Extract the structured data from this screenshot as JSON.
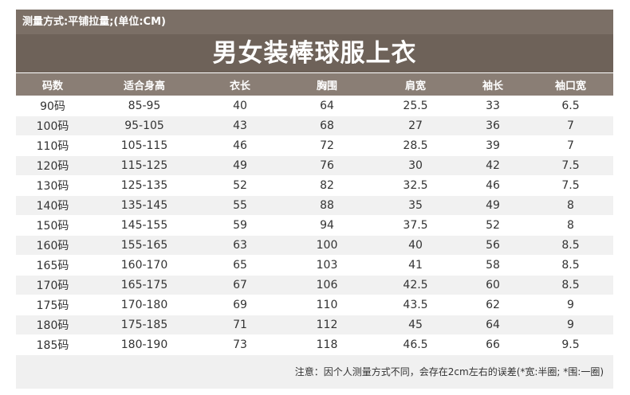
{
  "measure_note": "测量方式:平铺拉量;(单位:CM)",
  "title": "男女装棒球服上衣",
  "columns": [
    "码数",
    "适合身高",
    "衣长",
    "胸围",
    "肩宽",
    "袖长",
    "袖口宽"
  ],
  "rows": [
    [
      "90码",
      "85-95",
      "40",
      "64",
      "25.5",
      "33",
      "6.5"
    ],
    [
      "100码",
      "95-105",
      "43",
      "68",
      "27",
      "36",
      "7"
    ],
    [
      "110码",
      "105-115",
      "46",
      "72",
      "28.5",
      "39",
      "7"
    ],
    [
      "120码",
      "115-125",
      "49",
      "76",
      "30",
      "42",
      "7.5"
    ],
    [
      "130码",
      "125-135",
      "52",
      "82",
      "32.5",
      "46",
      "7.5"
    ],
    [
      "140码",
      "135-145",
      "55",
      "88",
      "35",
      "49",
      "8"
    ],
    [
      "150码",
      "145-155",
      "59",
      "94",
      "37.5",
      "52",
      "8"
    ],
    [
      "160码",
      "155-165",
      "63",
      "100",
      "40",
      "56",
      "8.5"
    ],
    [
      "165码",
      "160-170",
      "65",
      "103",
      "41",
      "58",
      "8.5"
    ],
    [
      "170码",
      "165-175",
      "67",
      "106",
      "42.5",
      "60",
      "8.5"
    ],
    [
      "175码",
      "170-180",
      "69",
      "110",
      "43.5",
      "62",
      "9"
    ],
    [
      "180码",
      "175-185",
      "71",
      "112",
      "45",
      "64",
      "9"
    ],
    [
      "185码",
      "180-190",
      "73",
      "118",
      "46.5",
      "66",
      "9.5"
    ]
  ],
  "footer_note": "注意：因个人测量方式不同，会存在2cm左右的误差(*宽:半圈; *围:一圈)"
}
